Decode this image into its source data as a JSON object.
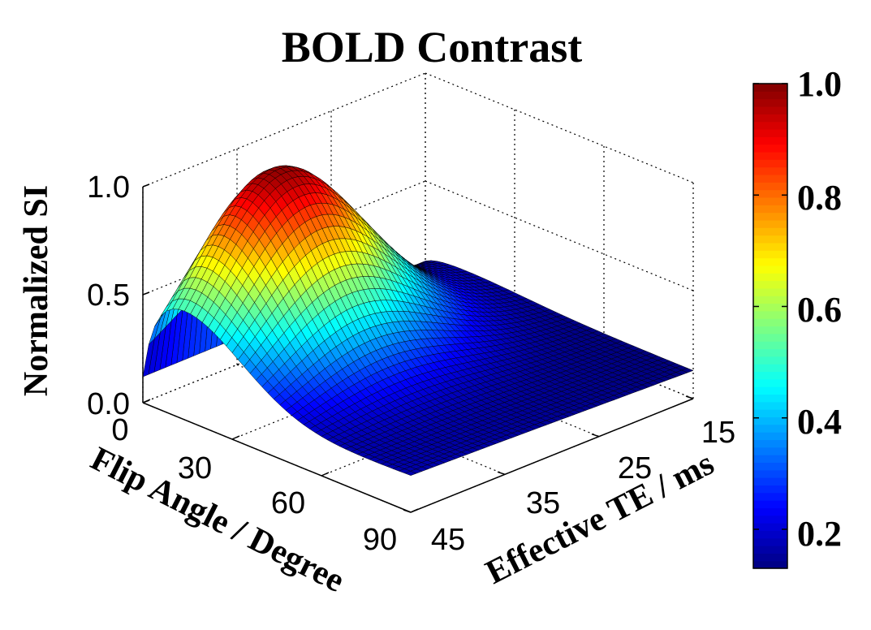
{
  "chart_data": {
    "type": "surface",
    "title": "BOLD Contrast",
    "zlabel": "Normalized SI",
    "xlabel": "Flip Angle / Degree",
    "ylabel": "Effective TE / ms",
    "flip_angle_range": [
      0,
      90
    ],
    "te_range": [
      15,
      45
    ],
    "z_range": [
      0.0,
      1.0
    ],
    "z_ticks": [
      "0.0",
      "0.5",
      "1.0"
    ],
    "flip_ticks": [
      "0",
      "30",
      "60",
      "90"
    ],
    "te_ticks": [
      "15",
      "25",
      "35",
      "45"
    ],
    "colorbar": {
      "min": 0.13,
      "max": 1.0,
      "ticks": [
        "0.2",
        "0.4",
        "0.6",
        "0.8",
        "1.0"
      ],
      "colormap": "jet"
    },
    "surface_model": {
      "description_of_values": "Normalized SI peaks near 1.0 around flip angle ~10-15 degrees and TE ~35 ms; falls to ~0.13 at TE 15 / flip 90.",
      "corner_values": {
        "flip0_te15": 0.13,
        "flip0_te45": 0.12,
        "flip90_te15": 0.13,
        "flip90_te45": 0.17
      },
      "peak": {
        "flip": 12,
        "te": 35,
        "value": 1.0
      }
    },
    "grid": true,
    "colors": {
      "edge": "#000000",
      "background": "#ffffff"
    }
  }
}
